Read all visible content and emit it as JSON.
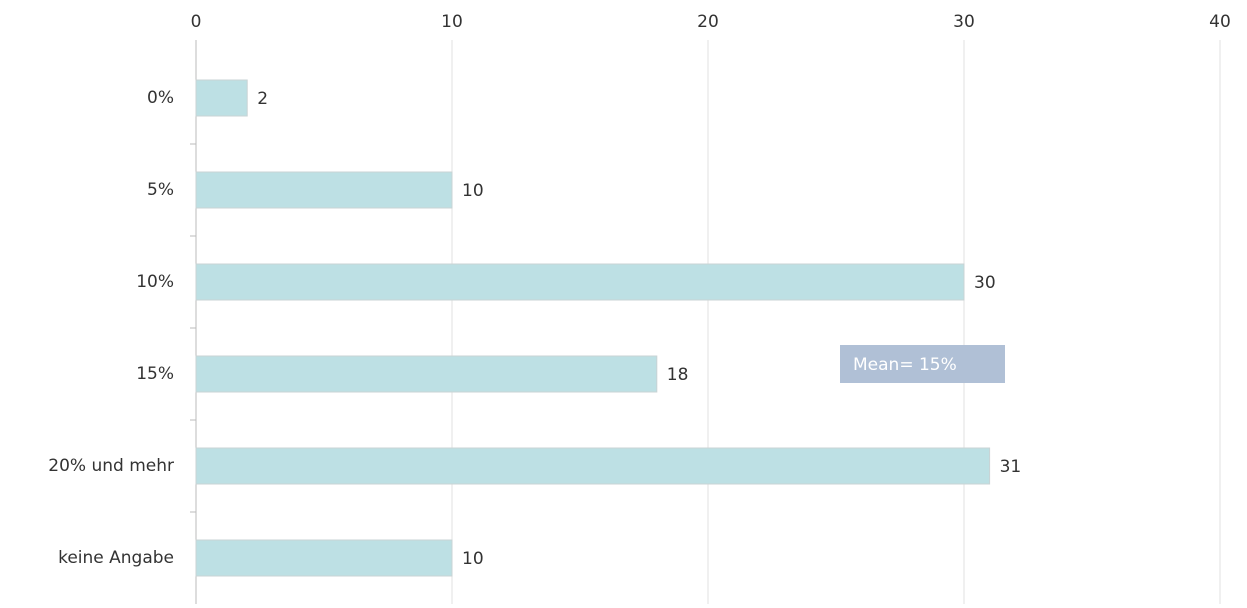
{
  "chart_data": {
    "type": "bar",
    "orientation": "horizontal",
    "categories": [
      "0%",
      "5%",
      "10%",
      "15%",
      "20% und mehr",
      "keine Angabe"
    ],
    "values": [
      2,
      10,
      30,
      18,
      31,
      10
    ],
    "color": "#bde0e4",
    "xlim": [
      0,
      40
    ],
    "xticks": [
      0,
      10,
      20,
      30,
      40
    ],
    "grid": true,
    "annotation": "Mean= 15%"
  }
}
